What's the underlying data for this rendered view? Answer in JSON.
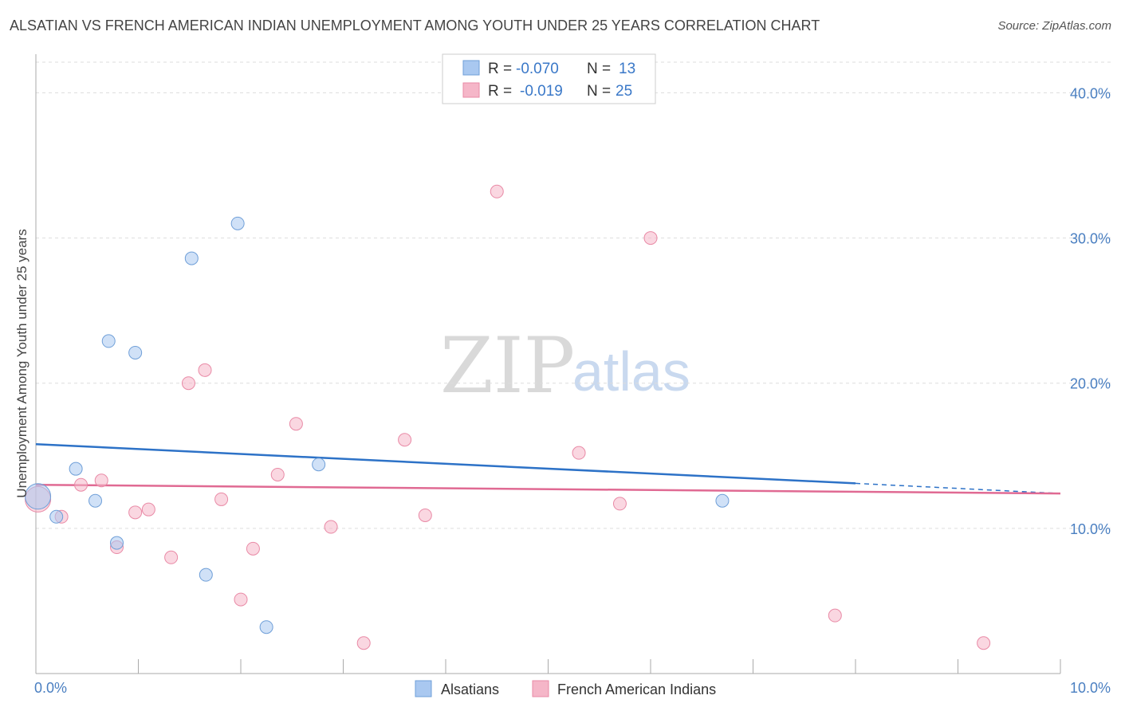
{
  "header": {
    "title": "ALSATIAN VS FRENCH AMERICAN INDIAN UNEMPLOYMENT AMONG YOUTH UNDER 25 YEARS CORRELATION CHART",
    "source": "Source: ZipAtlas.com"
  },
  "watermark": {
    "zip": "ZIP",
    "atlas": "atlas"
  },
  "legend": {
    "rows": [
      {
        "r_label": "R =",
        "r_value": "-0.070",
        "n_label": "N =",
        "n_value": "13",
        "color": "#a9c8f0"
      },
      {
        "r_label": "R =",
        "r_value": "-0.019",
        "n_label": "N =",
        "n_value": "25",
        "color": "#f5b6c8"
      }
    ]
  },
  "chart_data": {
    "type": "scatter",
    "title": "ALSATIAN VS FRENCH AMERICAN INDIAN UNEMPLOYMENT AMONG YOUTH UNDER 25 YEARS CORRELATION CHART",
    "xlabel": "",
    "ylabel": "Unemployment Among Youth under 25 years",
    "xlim": [
      0,
      10
    ],
    "ylim": [
      0,
      42
    ],
    "x_tick_labels": [
      {
        "value": 0,
        "label": "0.0%"
      },
      {
        "value": 10,
        "label": "10.0%"
      }
    ],
    "y_tick_labels": [
      {
        "value": 10,
        "label": "10.0%"
      },
      {
        "value": 20,
        "label": "20.0%"
      },
      {
        "value": 30,
        "label": "30.0%"
      },
      {
        "value": 40,
        "label": "40.0%"
      }
    ],
    "series": [
      {
        "name": "Alsatians",
        "color": "#a9c8f0",
        "stroke": "#6f9fd8",
        "points": [
          {
            "x": 0.02,
            "y": 12.2,
            "big": true
          },
          {
            "x": 0.2,
            "y": 10.8
          },
          {
            "x": 0.39,
            "y": 14.1
          },
          {
            "x": 0.58,
            "y": 11.9
          },
          {
            "x": 0.71,
            "y": 22.9
          },
          {
            "x": 0.79,
            "y": 9.0
          },
          {
            "x": 0.97,
            "y": 22.1
          },
          {
            "x": 1.52,
            "y": 28.6
          },
          {
            "x": 1.66,
            "y": 6.8
          },
          {
            "x": 1.97,
            "y": 31.0
          },
          {
            "x": 2.25,
            "y": 3.2
          },
          {
            "x": 2.76,
            "y": 14.4
          },
          {
            "x": 6.7,
            "y": 11.9
          }
        ],
        "trend": {
          "x0": 0,
          "y0": 15.8,
          "x1": 8.0,
          "y1": 13.1,
          "dash_to_x": 10,
          "dash_to_y": 12.4
        }
      },
      {
        "name": "French American Indians",
        "color": "#f5b6c8",
        "stroke": "#e98aa6",
        "points": [
          {
            "x": 0.02,
            "y": 12.0,
            "big": true
          },
          {
            "x": 0.25,
            "y": 10.8
          },
          {
            "x": 0.44,
            "y": 13.0
          },
          {
            "x": 0.64,
            "y": 13.3
          },
          {
            "x": 0.79,
            "y": 8.7
          },
          {
            "x": 0.97,
            "y": 11.1
          },
          {
            "x": 1.1,
            "y": 11.3
          },
          {
            "x": 1.32,
            "y": 8.0
          },
          {
            "x": 1.49,
            "y": 20.0
          },
          {
            "x": 1.65,
            "y": 20.9
          },
          {
            "x": 1.81,
            "y": 12.0
          },
          {
            "x": 2.0,
            "y": 5.1
          },
          {
            "x": 2.12,
            "y": 8.6
          },
          {
            "x": 2.36,
            "y": 13.7
          },
          {
            "x": 2.54,
            "y": 17.2
          },
          {
            "x": 2.88,
            "y": 10.1
          },
          {
            "x": 3.2,
            "y": 2.1
          },
          {
            "x": 3.6,
            "y": 16.1
          },
          {
            "x": 3.8,
            "y": 10.9
          },
          {
            "x": 4.5,
            "y": 33.2
          },
          {
            "x": 5.3,
            "y": 15.2
          },
          {
            "x": 5.7,
            "y": 11.7
          },
          {
            "x": 6.0,
            "y": 30.0
          },
          {
            "x": 7.8,
            "y": 4.0
          },
          {
            "x": 9.25,
            "y": 2.1
          }
        ],
        "trend": {
          "x0": 0,
          "y0": 13.0,
          "x1": 10,
          "y1": 12.4
        }
      }
    ]
  }
}
